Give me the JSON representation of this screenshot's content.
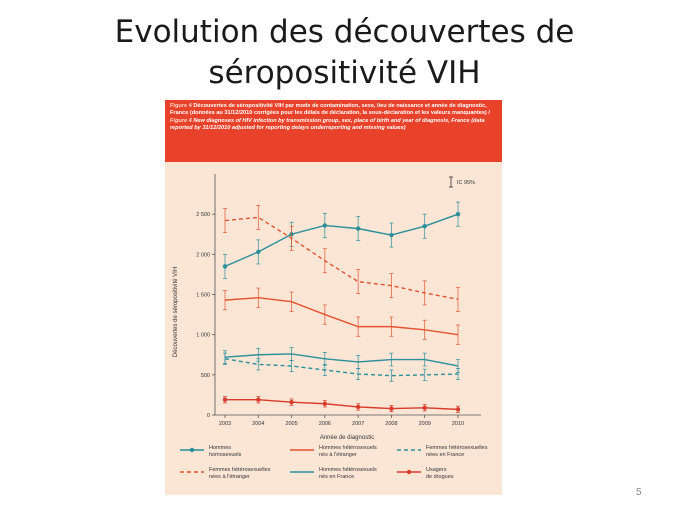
{
  "slide": {
    "title_line1": "Evolution des découvertes de",
    "title_line2": "séropositivité VIH",
    "page_number": "5"
  },
  "caption": {
    "label": "Figure 4",
    "text_fr": "Découvertes de séropositivité VIH par mode de contamination, sexe, lieu de naissance et année de diagnostic, France (données au 31/12/2010 corrigées pour les délais de déclaration, la sous-déclaration et les valeurs manquantes) /",
    "label_en": "Figure 4",
    "text_en": "New diagnoses of HIV infection by transmission group, sex, place of birth and year of diagnosis, France (data reported by 31/12/2010 adjusted for reporting delays underreporting and missing values)"
  },
  "colors": {
    "teal": "#2a8f9a",
    "orange": "#e2532e",
    "red": "#d93a2a",
    "caption_bg": "#e8422b",
    "panel_bg": "#fbe6d6"
  },
  "chart_data": {
    "type": "line",
    "xlabel": "Année de diagnostic",
    "ylabel": "Découvertes de séropositivité VIH",
    "ci_label": "IC 95%",
    "x": [
      2003,
      2004,
      2005,
      2006,
      2007,
      2008,
      2009,
      2010
    ],
    "ylim": [
      0,
      3000
    ],
    "yticks": [
      0,
      500,
      1000,
      1500,
      2000,
      2500
    ],
    "ytick_labels": [
      "0",
      "500",
      "1 000",
      "1 500",
      "2 000",
      "2 500"
    ],
    "legend_position": "bottom",
    "grid": false,
    "series": [
      {
        "name": "Hommes homosexuels",
        "name_lines": [
          "Hommes",
          "homosexuels"
        ],
        "color": "#2a8f9a",
        "style": "solid-marker",
        "values": [
          1850,
          2030,
          2250,
          2360,
          2320,
          2240,
          2350,
          2500
        ],
        "err": 150
      },
      {
        "name": "Hommes hétérosexuels nés à l'étranger",
        "name_lines": [
          "Hommes hétérosexuels",
          "nés à l'étranger"
        ],
        "color": "#e2532e",
        "style": "solid",
        "values": [
          1430,
          1460,
          1410,
          1250,
          1100,
          1100,
          1060,
          1000
        ],
        "err": 120
      },
      {
        "name": "Femmes hétérosexuelles nées en France",
        "name_lines": [
          "Femmes hétérosexuelles",
          "nées en France"
        ],
        "color": "#2a8f9a",
        "style": "dashed",
        "values": [
          700,
          630,
          610,
          560,
          510,
          490,
          500,
          510
        ],
        "err": 70
      },
      {
        "name": "Femmes hétérosexuelles nées à l'étranger",
        "name_lines": [
          "Femmes hétérosexuelles",
          "nées à l'étranger"
        ],
        "color": "#e2532e",
        "style": "dashed",
        "values": [
          2420,
          2460,
          2200,
          1920,
          1660,
          1610,
          1520,
          1440
        ],
        "err": 150
      },
      {
        "name": "Hommes hétérosexuels nés en France",
        "name_lines": [
          "Hommes hétérosexuels",
          "nés en France"
        ],
        "color": "#2a8f9a",
        "style": "solid",
        "values": [
          720,
          750,
          760,
          700,
          660,
          690,
          690,
          610
        ],
        "err": 80
      },
      {
        "name": "Usagers de drogues",
        "name_lines": [
          "Usagers",
          "de drogues"
        ],
        "color": "#d93a2a",
        "style": "solid-marker",
        "values": [
          190,
          190,
          160,
          140,
          100,
          80,
          90,
          70
        ],
        "err": 40
      }
    ]
  }
}
